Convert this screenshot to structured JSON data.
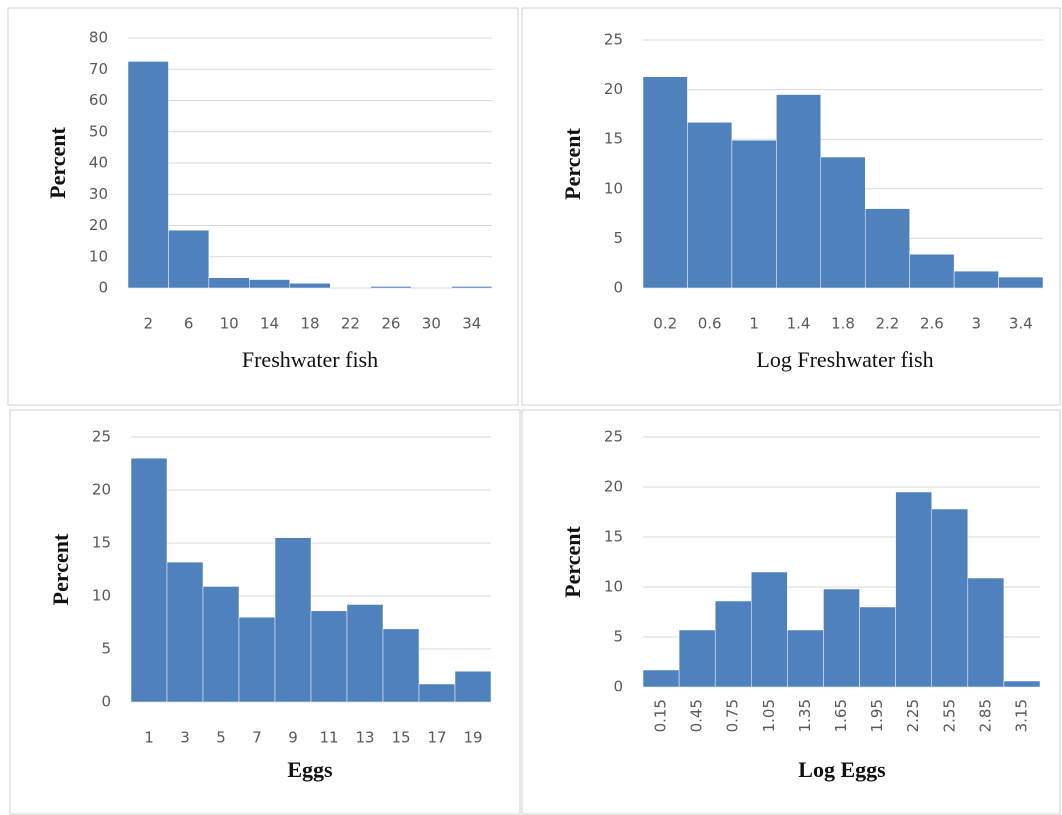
{
  "chart_data": [
    {
      "type": "bar",
      "xlabel": "Freshwater fish",
      "ylabel": "Percent",
      "xlabel_bold": false,
      "categories": [
        "2",
        "6",
        "10",
        "14",
        "18",
        "22",
        "26",
        "30",
        "34"
      ],
      "values": [
        72.5,
        18.5,
        3.3,
        2.7,
        1.5,
        0,
        0.5,
        0,
        0.5
      ],
      "ylim": [
        0,
        80
      ],
      "yticks": [
        0,
        10,
        20,
        30,
        40,
        50,
        60,
        70,
        80
      ],
      "grid": true,
      "color": "#4f81bd"
    },
    {
      "type": "bar",
      "xlabel": "Log Freshwater fish",
      "ylabel": "Percent",
      "xlabel_bold": false,
      "categories": [
        "0.2",
        "0.6",
        "1",
        "1.4",
        "1.8",
        "2.2",
        "2.6",
        "3",
        "3.4"
      ],
      "values": [
        21.3,
        16.7,
        14.9,
        19.5,
        13.2,
        8.0,
        3.4,
        1.7,
        1.1
      ],
      "ylim": [
        0,
        25
      ],
      "yticks": [
        0,
        5,
        10,
        15,
        20,
        25
      ],
      "grid": true,
      "color": "#4f81bd"
    },
    {
      "type": "bar",
      "xlabel": "Eggs",
      "ylabel": "Percent",
      "xlabel_bold": true,
      "categories": [
        "1",
        "3",
        "5",
        "7",
        "9",
        "11",
        "13",
        "15",
        "17",
        "19"
      ],
      "values": [
        23,
        13.2,
        10.9,
        8.0,
        15.5,
        8.6,
        9.2,
        6.9,
        1.7,
        2.9
      ],
      "ylim": [
        0,
        25
      ],
      "yticks": [
        0,
        5,
        10,
        15,
        20,
        25
      ],
      "grid": true,
      "color": "#4f81bd"
    },
    {
      "type": "bar",
      "xlabel": "Log Eggs",
      "ylabel": "Percent",
      "xlabel_bold": true,
      "x_label_rotation": 90,
      "categories": [
        "0.15",
        "0.45",
        "0.75",
        "1.05",
        "1.35",
        "1.65",
        "1.95",
        "2.25",
        "2.55",
        "2.85",
        "3.15"
      ],
      "values": [
        1.7,
        5.7,
        8.6,
        11.5,
        5.7,
        9.8,
        8.0,
        19.5,
        17.8,
        10.9,
        0.6
      ],
      "ylim": [
        0,
        25
      ],
      "yticks": [
        0,
        5,
        10,
        15,
        20,
        25
      ],
      "grid": true,
      "color": "#4f81bd"
    }
  ]
}
